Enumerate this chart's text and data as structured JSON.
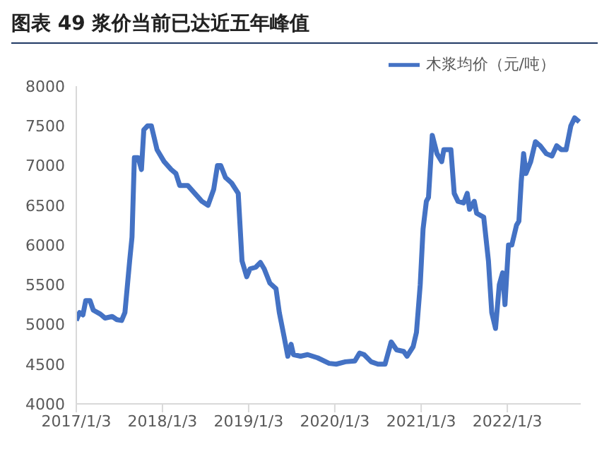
{
  "chart_data": {
    "type": "line",
    "title": "图表 49 浆价当前已达近五年峰值",
    "x": [
      "2017-01-03",
      "2017-01-17",
      "2017-01-31",
      "2017-02-12",
      "2017-03-02",
      "2017-03-16",
      "2017-04-15",
      "2017-05-05",
      "2017-06-04",
      "2017-06-24",
      "2017-07-14",
      "2017-07-28",
      "2017-08-17",
      "2017-08-27",
      "2017-09-06",
      "2017-09-22",
      "2017-10-06",
      "2017-10-16",
      "2017-11-01",
      "2017-11-17",
      "2017-12-11",
      "2018-01-10",
      "2018-02-09",
      "2018-03-01",
      "2018-03-17",
      "2018-04-20",
      "2018-05-20",
      "2018-06-19",
      "2018-07-15",
      "2018-08-08",
      "2018-08-24",
      "2018-09-07",
      "2018-09-27",
      "2018-10-23",
      "2018-11-20",
      "2018-12-06",
      "2018-12-26",
      "2019-01-09",
      "2019-02-02",
      "2019-02-22",
      "2019-03-10",
      "2019-04-03",
      "2019-04-29",
      "2019-05-13",
      "2019-06-02",
      "2019-06-18",
      "2019-07-02",
      "2019-07-12",
      "2019-08-11",
      "2019-09-10",
      "2019-10-22",
      "2019-12-10",
      "2020-01-09",
      "2020-02-17",
      "2020-03-28",
      "2020-04-17",
      "2020-05-06",
      "2020-06-05",
      "2020-07-04",
      "2020-08-03",
      "2020-08-29",
      "2020-09-21",
      "2020-10-21",
      "2020-11-04",
      "2020-11-30",
      "2020-12-14",
      "2020-12-30",
      "2021-01-11",
      "2021-01-25",
      "2021-02-03",
      "2021-02-19",
      "2021-03-11",
      "2021-03-31",
      "2021-04-09",
      "2021-05-09",
      "2021-05-23",
      "2021-06-08",
      "2021-07-02",
      "2021-07-17",
      "2021-07-27",
      "2021-08-16",
      "2021-08-26",
      "2021-09-25",
      "2021-10-15",
      "2021-10-29",
      "2021-11-14",
      "2021-11-30",
      "2021-12-14",
      "2021-12-24",
      "2022-01-08",
      "2022-01-22",
      "2022-02-11",
      "2022-02-21",
      "2022-03-03",
      "2022-03-13",
      "2022-03-23",
      "2022-04-12",
      "2022-05-02",
      "2022-05-22",
      "2022-06-17",
      "2022-07-11",
      "2022-07-31",
      "2022-08-20",
      "2022-09-09",
      "2022-09-29",
      "2022-10-15",
      "2022-11-04"
    ],
    "series": [
      {
        "name": "木浆均价（元/吨）",
        "color": "#4472c4",
        "values": [
          5050,
          5150,
          5120,
          5300,
          5300,
          5180,
          5130,
          5080,
          5100,
          5060,
          5050,
          5150,
          5800,
          6100,
          7100,
          7100,
          6950,
          7450,
          7500,
          7500,
          7200,
          7050,
          6950,
          6900,
          6750,
          6750,
          6650,
          6550,
          6500,
          6700,
          7000,
          7000,
          6850,
          6780,
          6650,
          5800,
          5600,
          5700,
          5720,
          5780,
          5700,
          5520,
          5450,
          5150,
          4850,
          4600,
          4750,
          4620,
          4600,
          4620,
          4580,
          4510,
          4500,
          4530,
          4540,
          4640,
          4620,
          4530,
          4500,
          4500,
          4780,
          4680,
          4660,
          4600,
          4720,
          4900,
          5500,
          6200,
          6550,
          6600,
          7380,
          7150,
          7050,
          7200,
          7200,
          6650,
          6550,
          6530,
          6650,
          6450,
          6550,
          6400,
          6350,
          5800,
          5150,
          4950,
          5500,
          5650,
          5250,
          6000,
          6000,
          6250,
          6300,
          6800,
          7150,
          6900,
          7050,
          7300,
          7250,
          7150,
          7120,
          7250,
          7200,
          7200,
          7500,
          7600,
          7550
        ]
      }
    ],
    "xlim": [
      "2017-01-03",
      "2022-11-10"
    ],
    "xticks": [
      {
        "value": "2017-01-03",
        "label": "2017/1/3"
      },
      {
        "value": "2018-01-03",
        "label": "2018/1/3"
      },
      {
        "value": "2019-01-03",
        "label": "2019/1/3"
      },
      {
        "value": "2020-01-03",
        "label": "2020/1/3"
      },
      {
        "value": "2021-01-03",
        "label": "2021/1/3"
      },
      {
        "value": "2022-01-03",
        "label": "2022/1/3"
      }
    ],
    "ylim": [
      4000,
      8000
    ],
    "yticks": [
      4000,
      4500,
      5000,
      5500,
      6000,
      6500,
      7000,
      7500,
      8000
    ],
    "grid": false,
    "legend": "top right",
    "marker": "none",
    "line_style": "solid"
  }
}
